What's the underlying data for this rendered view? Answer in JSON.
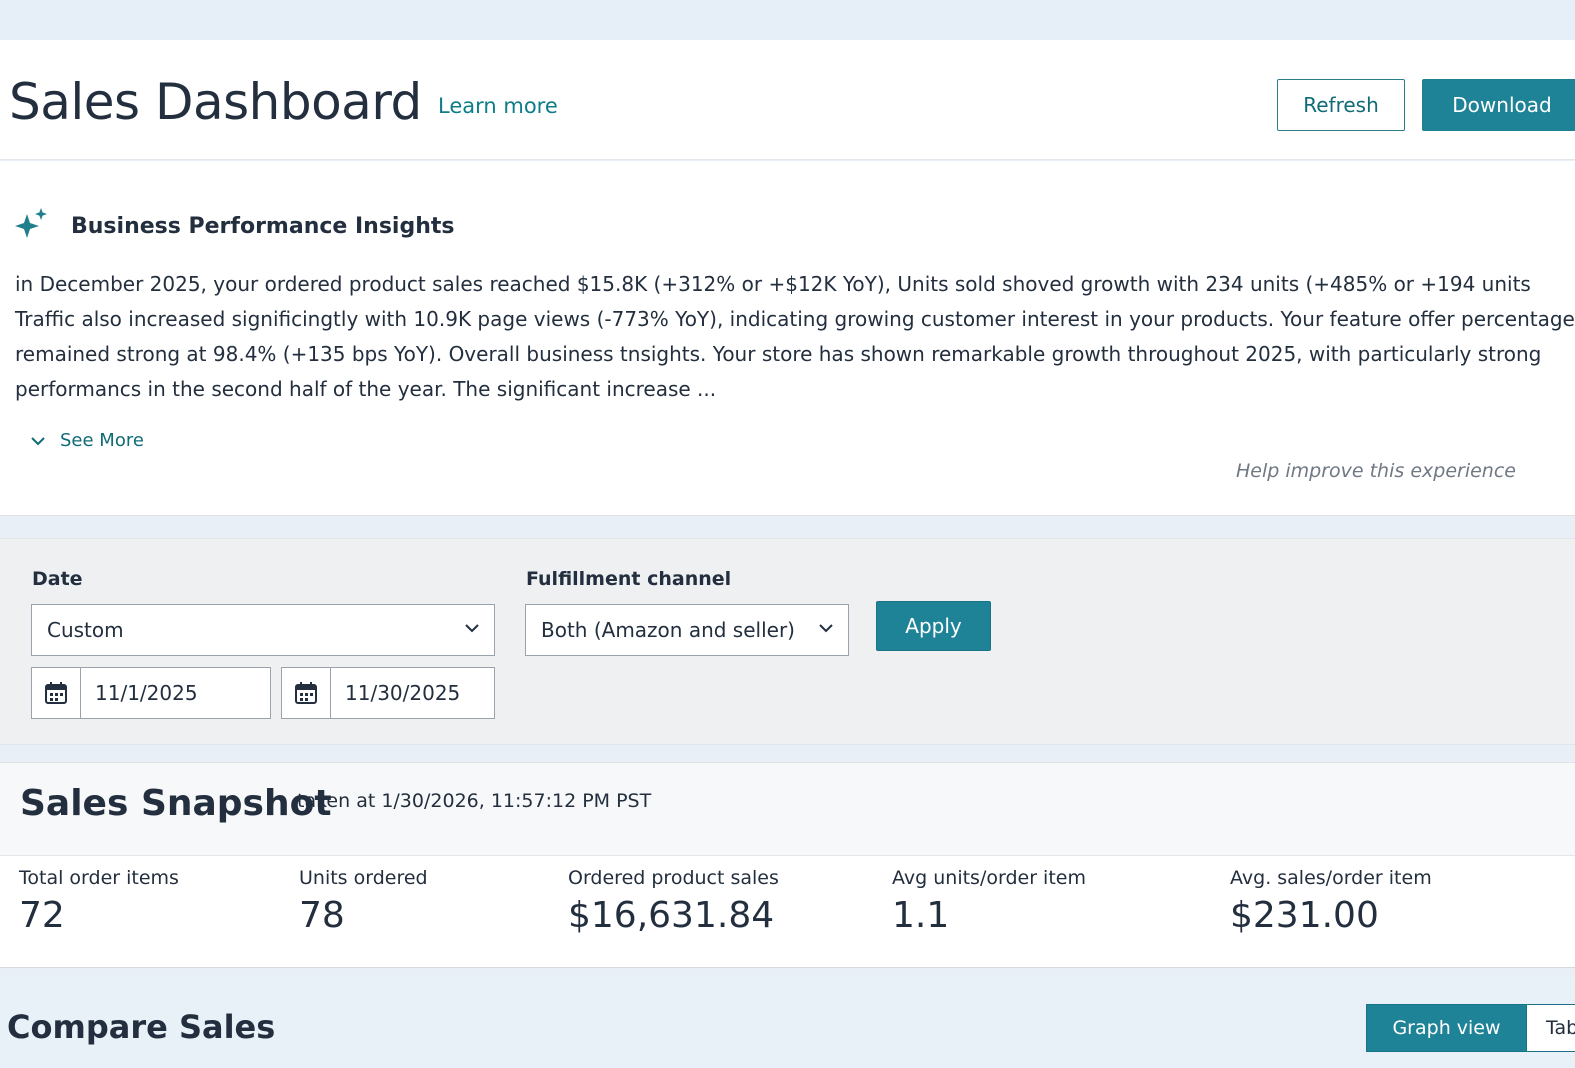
{
  "header": {
    "title": "Sales Dashboard",
    "learn_more": "Learn more",
    "refresh_label": "Refresh",
    "download_label": "Download"
  },
  "insights": {
    "icon": "sparkle-icon",
    "title": "Business Performance Insights",
    "lines": [
      "in December 2025, your ordered product sales reached $15.8K (+312% or +$12K YoY), Units sold shoved growth with 234 units (+485% or +194 units",
      "Traffic also increased significingtly with 10.9K page views (-773% YoY), indicating growing customer interest in your products. Your feature offer percentage",
      "remained strong at 98.4% (+135 bps YoY). Overall business tnsights. Your store has shown remarkable growth throughout 2025, with particularly strong",
      "performancs in the second half of the year. The significant increase ..."
    ],
    "see_more": "See More",
    "help_improve": "Help improve this experience"
  },
  "filters": {
    "date_label": "Date",
    "date_select": "Custom",
    "start_date": "11/1/2025",
    "end_date": "11/30/2025",
    "fulfillment_label": "Fulfillment channel",
    "fulfillment_select": "Both (Amazon and seller)",
    "apply_label": "Apply"
  },
  "snapshot": {
    "title": "Sales Snapshot",
    "subtitle": "taken at 1/30/2026, 11:57:12 PM PST",
    "metrics": [
      {
        "label": "Total order items",
        "value": "72"
      },
      {
        "label": "Units ordered",
        "value": "78"
      },
      {
        "label": "Ordered product sales",
        "value": "$16,631.84"
      },
      {
        "label": "Avg units/order item",
        "value": "1.1"
      },
      {
        "label": "Avg. sales/order item",
        "value": "$231.00"
      }
    ]
  },
  "compare": {
    "title": "Compare Sales",
    "graph_view": "Graph view",
    "table_view": "Table view"
  },
  "colors": {
    "accent": "#1f8397",
    "link": "#0f7d87",
    "text": "#232f3e"
  }
}
